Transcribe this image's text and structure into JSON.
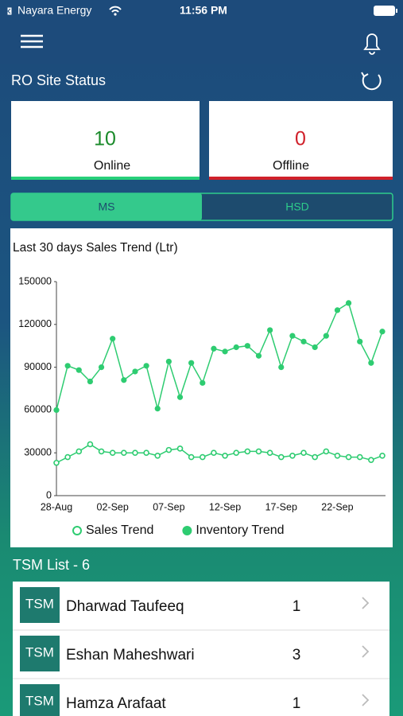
{
  "status_bar": {
    "carrier": "Nayara Energy",
    "time": "11:56 PM"
  },
  "site_status": {
    "title": "RO Site Status",
    "online": {
      "count": 10,
      "label": "Online"
    },
    "offline": {
      "count": 0,
      "label": "Offline"
    }
  },
  "tabs": [
    "MS",
    "HSD"
  ],
  "chart_data": {
    "type": "line",
    "title": "Last 30 days Sales Trend (Ltr)",
    "categories": [
      "28-Aug",
      null,
      null,
      null,
      null,
      "02-Sep",
      null,
      null,
      null,
      null,
      "07-Sep",
      null,
      null,
      null,
      null,
      "12-Sep",
      null,
      null,
      null,
      null,
      "17-Sep",
      null,
      null,
      null,
      null,
      "22-Sep",
      null,
      null,
      null,
      null
    ],
    "series": [
      {
        "name": "Sales Trend",
        "color": "#2ecc71",
        "marker": "open",
        "values": [
          23000,
          27000,
          31000,
          36000,
          31000,
          30000,
          30000,
          30000,
          30000,
          28000,
          32000,
          33000,
          27000,
          27000,
          30000,
          28000,
          30000,
          31000,
          31000,
          30000,
          27000,
          28000,
          30000,
          27000,
          31000,
          28000,
          27000,
          27000,
          25000,
          28000
        ]
      },
      {
        "name": "Inventory Trend",
        "color": "#2ecc71",
        "marker": "filled",
        "values": [
          60000,
          91000,
          88000,
          80000,
          90000,
          110000,
          81000,
          87000,
          91000,
          61000,
          94000,
          69000,
          93000,
          79000,
          103000,
          101000,
          104000,
          105000,
          98000,
          116000,
          90000,
          112000,
          108000,
          104000,
          112000,
          130000,
          135000,
          108000,
          93000,
          115000
        ]
      }
    ],
    "ylim": [
      0,
      150000
    ],
    "yticks": [
      0,
      30000,
      60000,
      90000,
      120000,
      150000
    ],
    "grid": false
  },
  "tsm_list": {
    "title": "TSM List - 6",
    "rows": [
      {
        "badge": "TSM",
        "name": "Dharwad Taufeeq",
        "count": 1
      },
      {
        "badge": "TSM",
        "name": "Eshan Maheshwari",
        "count": 3
      },
      {
        "badge": "TSM",
        "name": "Hamza Arafaat",
        "count": 1
      }
    ]
  }
}
